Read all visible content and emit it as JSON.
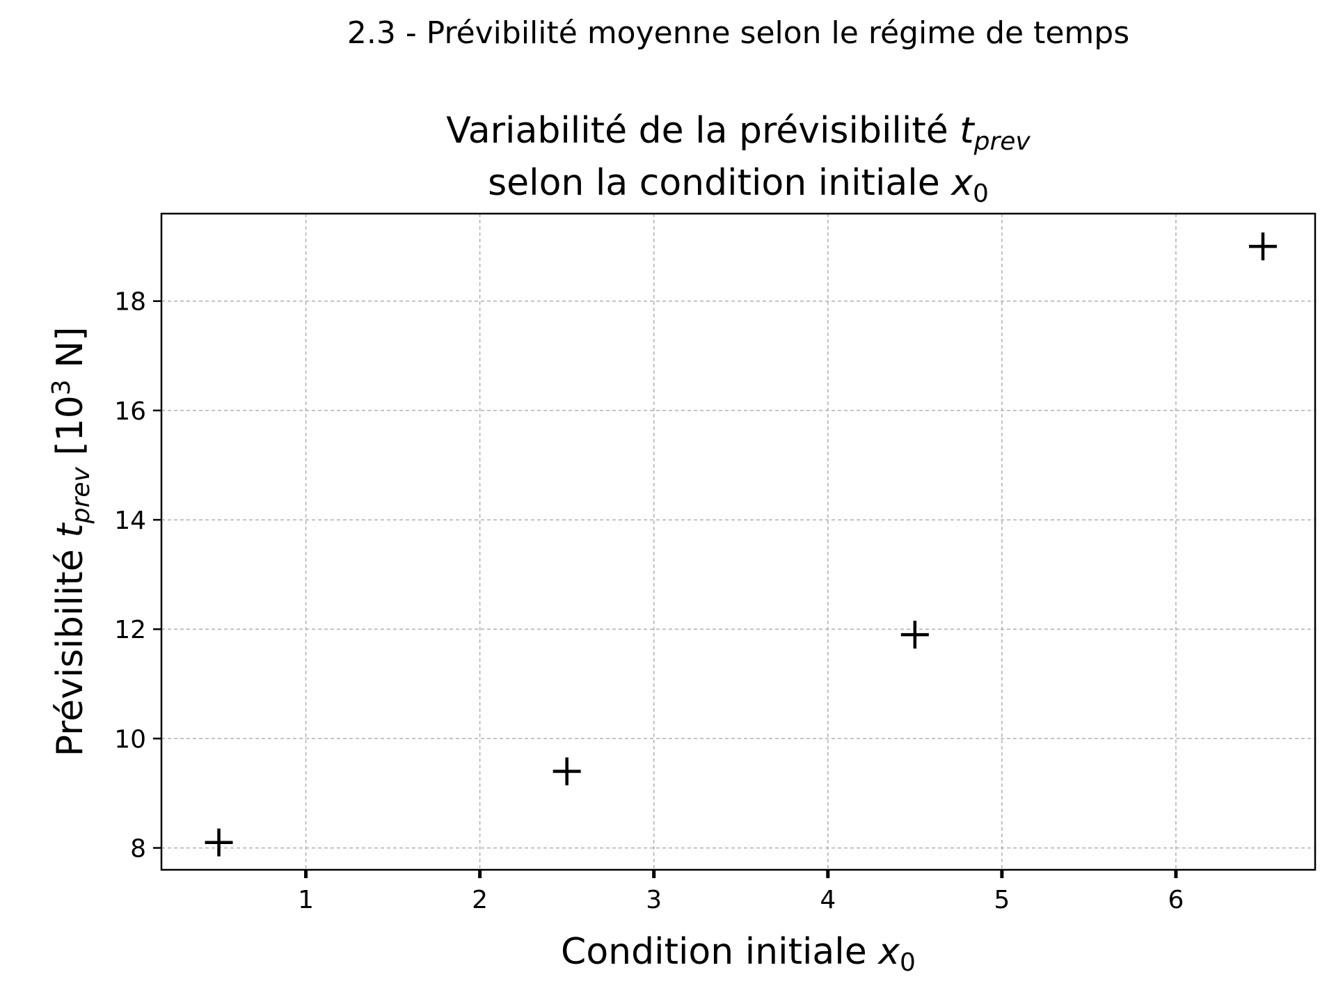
{
  "figure": {
    "suptitle": "2.3 - Prévibilité moyenne selon le régime de temps"
  },
  "chart_data": {
    "type": "scatter",
    "title_line1": "Variabilité de la prévisibilité ",
    "title_line1_math": "t",
    "title_line1_math_sub": "prev",
    "title_line2": "selon la condition initiale ",
    "title_line2_math": "x",
    "title_line2_math_sub": "0",
    "xlabel": "Condition initiale ",
    "xlabel_math": "x",
    "xlabel_math_sub": "0",
    "ylabel": "Prévisibilité ",
    "ylabel_math": "t",
    "ylabel_math_sub": "prev",
    "ylabel_unit_pre": " [10",
    "ylabel_unit_sup": "3",
    "ylabel_unit_post": " N]",
    "xlim": [
      0.17,
      6.8
    ],
    "ylim": [
      7.6,
      19.6
    ],
    "xticks": [
      1,
      2,
      3,
      4,
      5,
      6
    ],
    "yticks": [
      8,
      10,
      12,
      14,
      16,
      18
    ],
    "grid": true,
    "marker": "+",
    "marker_color": "#000000",
    "grid_color": "#b0b0b0",
    "points": [
      {
        "x": 0.5,
        "y": 8.1
      },
      {
        "x": 2.5,
        "y": 9.4
      },
      {
        "x": 4.5,
        "y": 11.9
      },
      {
        "x": 6.5,
        "y": 19.0
      }
    ]
  }
}
